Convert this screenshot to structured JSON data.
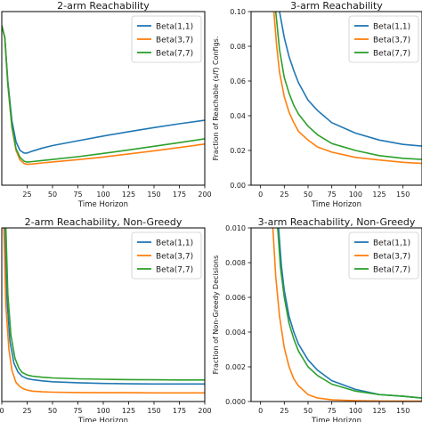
{
  "figure": {
    "background": "#ffffff",
    "colors": {
      "Beta(1,1)": "#1f77b4",
      "Beta(3,7)": "#ff7f0e",
      "Beta(7,7)": "#2ca02c",
      "axis": "#000000",
      "text": "#1a1a1a"
    }
  },
  "chart_data": [
    {
      "type": "line",
      "title": "2-arm Reachability",
      "xlabel": "Time Horizon",
      "ylabel": "",
      "xlim": [
        0,
        200
      ],
      "ylim": [
        0,
        0.1
      ],
      "xticks": [
        "25",
        "50",
        "75",
        "100",
        "125",
        "150",
        "175",
        "200"
      ],
      "yticks": [],
      "legend_position": "top-right",
      "grid": false,
      "series": [
        {
          "name": "Beta(1,1)",
          "color": "#1f77b4",
          "x": [
            0,
            3,
            6,
            10,
            14,
            18,
            22,
            25,
            30,
            40,
            50,
            75,
            100,
            125,
            150,
            175,
            200
          ],
          "y": [
            0.092,
            0.085,
            0.06,
            0.037,
            0.025,
            0.02,
            0.0185,
            0.0185,
            0.0196,
            0.0214,
            0.0228,
            0.0256,
            0.0283,
            0.0308,
            0.0332,
            0.0354,
            0.0374
          ]
        },
        {
          "name": "Beta(3,7)",
          "color": "#ff7f0e",
          "x": [
            0,
            3,
            6,
            10,
            14,
            18,
            22,
            25,
            30,
            40,
            50,
            75,
            100,
            125,
            150,
            175,
            200
          ],
          "y": [
            0.092,
            0.085,
            0.058,
            0.033,
            0.02,
            0.0145,
            0.0125,
            0.012,
            0.0122,
            0.0128,
            0.0134,
            0.0147,
            0.0162,
            0.018,
            0.0198,
            0.0217,
            0.0237
          ]
        },
        {
          "name": "Beta(7,7)",
          "color": "#2ca02c",
          "x": [
            0,
            3,
            6,
            10,
            14,
            18,
            22,
            25,
            30,
            40,
            50,
            75,
            100,
            125,
            150,
            175,
            200
          ],
          "y": [
            0.092,
            0.085,
            0.058,
            0.034,
            0.021,
            0.016,
            0.0138,
            0.0133,
            0.0136,
            0.0142,
            0.0148,
            0.0164,
            0.0183,
            0.0203,
            0.0224,
            0.0245,
            0.0267
          ]
        }
      ]
    },
    {
      "type": "line",
      "title": "3-arm Reachability",
      "xlabel": "Time Horizon",
      "ylabel": "Fraction of Reachable (s/f) Configs.",
      "xlim": [
        -10,
        170
      ],
      "ylim": [
        0,
        0.1
      ],
      "xticks": [
        "0",
        "25",
        "50",
        "75",
        "100",
        "125",
        "150"
      ],
      "yticks": [
        "0.00",
        "0.02",
        "0.04",
        "0.06",
        "0.08",
        "0.10"
      ],
      "legend_position": "top-right",
      "grid": false,
      "series": [
        {
          "name": "Beta(1,1)",
          "color": "#1f77b4",
          "x": [
            20,
            25,
            30,
            35,
            40,
            50,
            60,
            75,
            100,
            125,
            150,
            170
          ],
          "y": [
            0.1,
            0.085,
            0.074,
            0.066,
            0.059,
            0.049,
            0.043,
            0.036,
            0.03,
            0.026,
            0.0235,
            0.0225
          ]
        },
        {
          "name": "Beta(3,7)",
          "color": "#ff7f0e",
          "x": [
            14,
            17,
            20,
            25,
            30,
            35,
            40,
            50,
            60,
            75,
            100,
            125,
            150,
            170
          ],
          "y": [
            0.1,
            0.08,
            0.065,
            0.051,
            0.042,
            0.036,
            0.031,
            0.026,
            0.022,
            0.019,
            0.016,
            0.0145,
            0.0132,
            0.0125
          ]
        },
        {
          "name": "Beta(7,7)",
          "color": "#2ca02c",
          "x": [
            16,
            20,
            25,
            30,
            35,
            40,
            50,
            60,
            75,
            100,
            125,
            150,
            170
          ],
          "y": [
            0.1,
            0.078,
            0.062,
            0.053,
            0.046,
            0.041,
            0.034,
            0.029,
            0.024,
            0.02,
            0.017,
            0.0155,
            0.0148
          ]
        }
      ]
    },
    {
      "type": "line",
      "title": "2-arm Reachability, Non-Greedy",
      "xlabel": "Time Horizon",
      "ylabel": "",
      "xlim": [
        0,
        200
      ],
      "ylim": [
        0,
        0.1
      ],
      "xticks": [
        "0",
        "25",
        "50",
        "75",
        "100",
        "125",
        "150",
        "175",
        "200"
      ],
      "yticks": [],
      "legend_position": "top-right",
      "grid": false,
      "series": [
        {
          "name": "Beta(1,1)",
          "color": "#1f77b4",
          "x": [
            3,
            5,
            8,
            12,
            16,
            20,
            25,
            30,
            40,
            50,
            75,
            100,
            125,
            150,
            175,
            200
          ],
          "y": [
            0.1,
            0.06,
            0.035,
            0.022,
            0.017,
            0.0145,
            0.0132,
            0.0126,
            0.0119,
            0.0114,
            0.0108,
            0.0104,
            0.0102,
            0.0101,
            0.0101,
            0.0101
          ]
        },
        {
          "name": "Beta(3,7)",
          "color": "#ff7f0e",
          "x": [
            2,
            4,
            7,
            10,
            14,
            18,
            22,
            25,
            30,
            40,
            50,
            75,
            100,
            125,
            150,
            175,
            200
          ],
          "y": [
            0.1,
            0.055,
            0.03,
            0.018,
            0.011,
            0.0085,
            0.0072,
            0.0066,
            0.006,
            0.0056,
            0.0054,
            0.0052,
            0.0051,
            0.0051,
            0.005,
            0.005,
            0.005
          ]
        },
        {
          "name": "Beta(7,7)",
          "color": "#green",
          "x": [
            4,
            6,
            9,
            13,
            17,
            20,
            25,
            30,
            40,
            50,
            75,
            100,
            125,
            150,
            175,
            200
          ],
          "y": [
            0.1,
            0.062,
            0.038,
            0.025,
            0.019,
            0.0168,
            0.0153,
            0.0146,
            0.014,
            0.0136,
            0.0131,
            0.0128,
            0.0126,
            0.0125,
            0.0124,
            0.0124
          ]
        }
      ]
    },
    {
      "type": "line",
      "title": "3-arm Reachability, Non-Greedy",
      "xlabel": "Time Horizon",
      "ylabel": "Fraction of Non-Greedy Decisions",
      "xlim": [
        -10,
        170
      ],
      "ylim": [
        0,
        0.01
      ],
      "xticks": [
        "0",
        "25",
        "50",
        "75",
        "100",
        "125",
        "150"
      ],
      "yticks": [
        "0.000",
        "0.002",
        "0.004",
        "0.006",
        "0.008",
        "0.010"
      ],
      "legend_position": "top-right",
      "grid": false,
      "series": [
        {
          "name": "Beta(1,1)",
          "color": "#1f77b4",
          "x": [
            19,
            22,
            25,
            30,
            35,
            40,
            50,
            60,
            75,
            100,
            125,
            150,
            170
          ],
          "y": [
            0.01,
            0.0078,
            0.0064,
            0.0049,
            0.004,
            0.0033,
            0.0024,
            0.0018,
            0.0012,
            0.0007,
            0.0004,
            0.0003,
            0.0002
          ]
        },
        {
          "name": "Beta(3,7)",
          "color": "#ff7f0e",
          "x": [
            13,
            16,
            20,
            25,
            30,
            35,
            40,
            50,
            60,
            75,
            100,
            125,
            150,
            170
          ],
          "y": [
            0.01,
            0.0072,
            0.0049,
            0.0031,
            0.002,
            0.0013,
            0.0009,
            0.0004,
            0.0002,
            0.0001,
            5e-05,
            3e-05,
            2e-05,
            2e-05
          ]
        },
        {
          "name": "Beta(7,7)",
          "color": "#2ca02c",
          "x": [
            18,
            21,
            25,
            30,
            35,
            40,
            50,
            60,
            75,
            100,
            125,
            150,
            170
          ],
          "y": [
            0.01,
            0.0077,
            0.006,
            0.0045,
            0.0036,
            0.0029,
            0.002,
            0.0015,
            0.001,
            0.0006,
            0.0004,
            0.0003,
            0.0002
          ]
        }
      ]
    }
  ]
}
